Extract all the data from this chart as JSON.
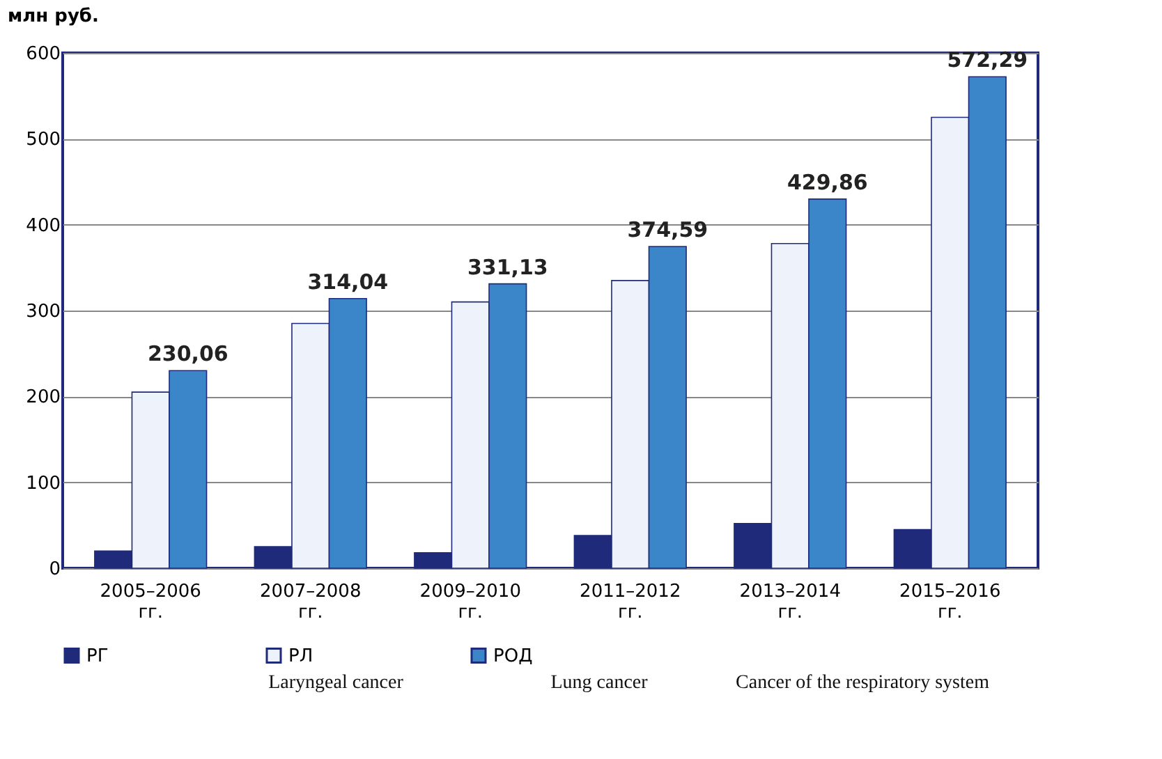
{
  "chart_data": {
    "type": "bar",
    "ylabel": "млн руб.",
    "categories": [
      "2005–2006\nгг.",
      "2007–2008\nгг.",
      "2009–2010\nгг.",
      "2011–2012\nгг.",
      "2013–2014\nгг.",
      "2015–2016\nгг."
    ],
    "series": [
      {
        "name": "РГ",
        "color": "#1f2a7a",
        "values": [
          20,
          25,
          18,
          38,
          52,
          45
        ]
      },
      {
        "name": "РЛ",
        "color": "#eef2fa",
        "values": [
          205,
          285,
          310,
          335,
          378,
          525
        ]
      },
      {
        "name": "РОД",
        "color": "#3a86c8",
        "values": [
          230.06,
          314.04,
          331.13,
          374.59,
          429.86,
          572.29
        ],
        "value_labels": [
          "230,06",
          "314,04",
          "331,13",
          "374,59",
          "429,86",
          "572,29"
        ]
      }
    ],
    "ylim": [
      0,
      600
    ],
    "yticks": [
      0,
      100,
      200,
      300,
      400,
      500,
      600
    ],
    "grid": "y",
    "legend": "bottom",
    "annotations": [
      "Laryngeal cancer",
      "Lung cancer",
      "Cancer of the respiratory system"
    ]
  }
}
